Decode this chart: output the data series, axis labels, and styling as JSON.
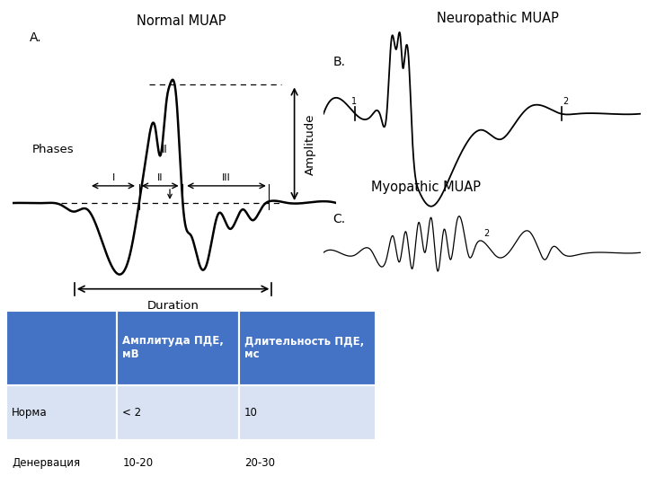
{
  "title_normal": "Normal MUAP",
  "title_neuropathic": "Neuropathic MUAP",
  "title_myopathic": "Myopathic MUAP",
  "label_A": "A.",
  "label_B": "B.",
  "label_C": "C.",
  "label_phases": "Phases",
  "label_amplitude": "Amplitude",
  "label_duration": "Duration",
  "label_I": "I",
  "label_II": "II",
  "label_III": "III",
  "table_header": [
    "",
    "Амплитуда ПДЕ,\nмВ",
    "Длительность ПДЕ,\nмс"
  ],
  "table_rows": [
    [
      "Норма",
      "< 2",
      "10"
    ],
    [
      "Денервация",
      "10-20",
      "20-30"
    ]
  ],
  "table_header_bg": "#4472C4",
  "table_row1_bg": "#D9E2F3",
  "table_row2_bg": "#FFFFFF",
  "table_text_color": "#FFFFFF",
  "table_row_text_color": "#000000",
  "bg_color": "#FFFFFF"
}
